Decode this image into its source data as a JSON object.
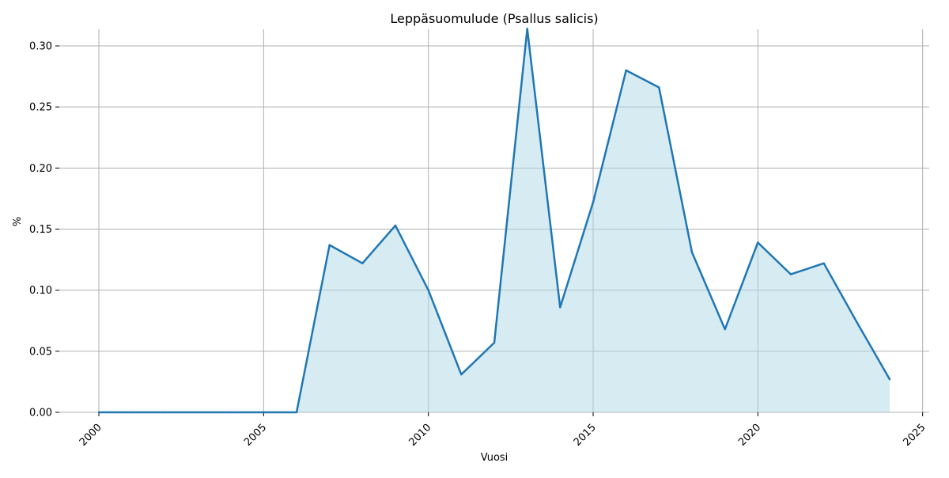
{
  "chart_data": {
    "type": "area",
    "title": "Leppäsuomulude (Psallus salicis)",
    "xlabel": "Vuosi",
    "ylabel": "%",
    "xlim": [
      1998.8,
      2025.2
    ],
    "ylim": [
      0,
      0.3136
    ],
    "grid": true,
    "legend": "none",
    "x_ticks": [
      "2000",
      "2005",
      "2010",
      "2015",
      "2020",
      "2025"
    ],
    "y_ticks": [
      "0.00",
      "0.05",
      "0.10",
      "0.15",
      "0.20",
      "0.25",
      "0.30"
    ],
    "line_color": "#1f77b4",
    "fill_color": "#add8e6",
    "x": [
      2000,
      2001,
      2002,
      2003,
      2004,
      2005,
      2006,
      2007,
      2008,
      2009,
      2010,
      2011,
      2012,
      2013,
      2014,
      2015,
      2016,
      2017,
      2018,
      2019,
      2020,
      2021,
      2022,
      2023,
      2024
    ],
    "values": [
      0,
      0,
      0,
      0,
      0,
      0,
      0,
      0.137,
      0.122,
      0.153,
      0.1,
      0.031,
      0.057,
      0.314,
      0.086,
      0.172,
      0.28,
      0.266,
      0.131,
      0.068,
      0.139,
      0.113,
      0.122,
      0.074,
      0.027
    ]
  }
}
